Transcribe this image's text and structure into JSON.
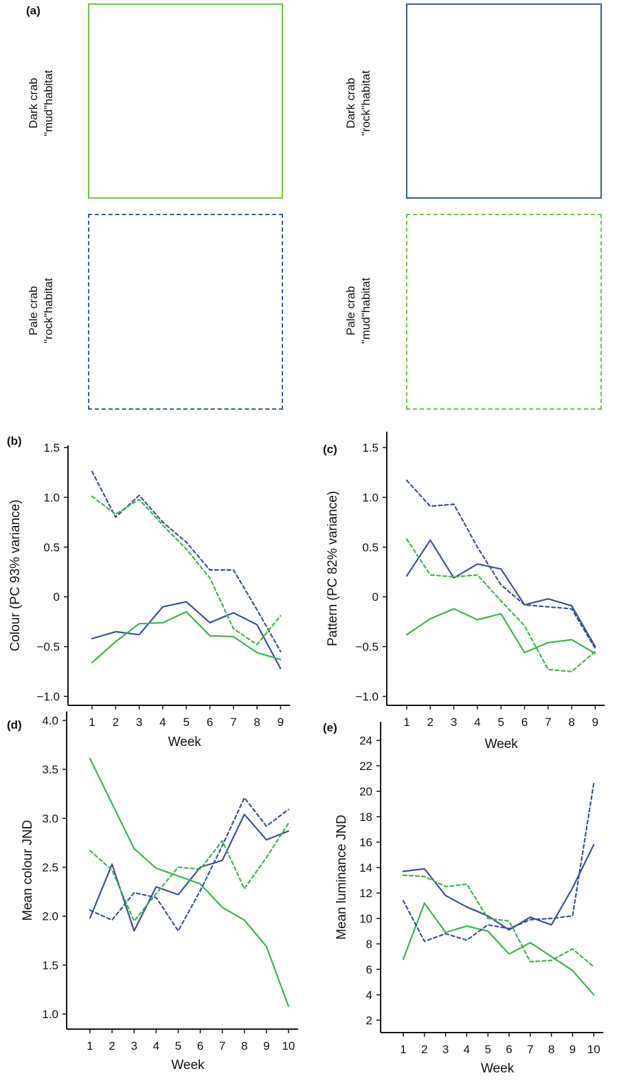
{
  "panel_a": {
    "label": "(a)",
    "tiles": [
      {
        "line1": "Dark crab",
        "line2": "\"mud\"habitat",
        "habitat": "mud",
        "crab": "dark",
        "border": "solid",
        "frame_color": "#6cc644"
      },
      {
        "line1": "Dark crab",
        "line2": "\"rock\"habitat",
        "habitat": "rock",
        "crab": "dark",
        "border": "solid",
        "frame_color": "#3a5a9c"
      },
      {
        "line1": "Pale crab",
        "line2": "\"rock\"habitat",
        "habitat": "rock",
        "crab": "pale",
        "border": "dashed",
        "frame_color": "#3a5a9c"
      },
      {
        "line1": "Pale crab",
        "line2": "\"mud\"habitat",
        "habitat": "mud",
        "crab": "pale",
        "border": "dashed",
        "frame_color": "#6cc644"
      }
    ],
    "palettes": {
      "mud": [
        "#2e9b3a",
        "#3fb54a",
        "#2a8a33",
        "#8a5a3a",
        "#a0745a",
        "#c9b8a0",
        "#6b4a30",
        "#e8e0d0",
        "#b06a50",
        "#48c050"
      ],
      "rock": [
        "#d86aa8",
        "#e890c0",
        "#f4f4f4",
        "#e0e0e0",
        "#2a2a2a",
        "#3a3a40",
        "#2b50a8",
        "#3a66c8",
        "#c858a0",
        "#bcbcbc"
      ]
    },
    "crab_colors": {
      "dark": "#2f342a",
      "pale": "#a8ad90"
    }
  },
  "series_colors": {
    "blue": "#3a4f9e",
    "green": "#3cb54a"
  },
  "chart_data": [
    {
      "id": "b",
      "label": "(b)",
      "type": "line",
      "xlabel": "Week",
      "ylabel": "Colour (PC 93% variance)",
      "x": [
        1,
        2,
        3,
        4,
        5,
        6,
        7,
        8,
        9
      ],
      "ylim": [
        -1.0,
        1.5
      ],
      "yticks": [
        1.5,
        1.0,
        0.5,
        0,
        -0.5,
        -1.0
      ],
      "ytick_labels": [
        "1.5",
        "1.0",
        "0.5",
        "0",
        "−0.5",
        "−1.0"
      ],
      "xticks": [
        "1",
        "2",
        "3",
        "4",
        "5",
        "6",
        "7",
        "8",
        "9"
      ],
      "series": [
        {
          "color": "blue",
          "dash": false,
          "values": [
            -0.42,
            -0.35,
            -0.38,
            -0.1,
            -0.05,
            -0.26,
            -0.16,
            -0.28,
            -0.72
          ]
        },
        {
          "color": "green",
          "dash": false,
          "values": [
            -0.66,
            -0.45,
            -0.27,
            -0.26,
            -0.15,
            -0.39,
            -0.4,
            -0.56,
            -0.63
          ]
        },
        {
          "color": "blue",
          "dash": true,
          "values": [
            1.26,
            0.8,
            1.02,
            0.75,
            0.55,
            0.27,
            0.27,
            -0.13,
            -0.55
          ]
        },
        {
          "color": "green",
          "dash": true,
          "values": [
            1.01,
            0.83,
            0.98,
            0.72,
            0.48,
            0.19,
            -0.32,
            -0.48,
            -0.19
          ]
        }
      ]
    },
    {
      "id": "c",
      "label": "(c)",
      "type": "line",
      "xlabel": "Week",
      "ylabel": "Pattern (PC 82% variance)",
      "x": [
        1,
        2,
        3,
        4,
        5,
        6,
        7,
        8,
        9
      ],
      "ylim": [
        -1.0,
        1.5
      ],
      "yticks": [
        1.5,
        1.0,
        0.5,
        0,
        -0.5,
        -1.0
      ],
      "ytick_labels": [
        "1.5",
        "1.0",
        "0.5",
        "0",
        "−0.5",
        "−1.0"
      ],
      "xticks": [
        "1",
        "2",
        "3",
        "4",
        "5",
        "6",
        "7",
        "8",
        "9"
      ],
      "series": [
        {
          "color": "blue",
          "dash": false,
          "values": [
            0.21,
            0.57,
            0.19,
            0.33,
            0.28,
            -0.08,
            -0.02,
            -0.09,
            -0.5
          ]
        },
        {
          "color": "green",
          "dash": false,
          "values": [
            -0.38,
            -0.22,
            -0.12,
            -0.23,
            -0.17,
            -0.56,
            -0.46,
            -0.43,
            -0.57
          ]
        },
        {
          "color": "blue",
          "dash": true,
          "values": [
            1.17,
            0.91,
            0.93,
            0.5,
            0.12,
            -0.08,
            -0.1,
            -0.12,
            -0.52
          ]
        },
        {
          "color": "green",
          "dash": true,
          "values": [
            0.58,
            0.22,
            0.2,
            0.22,
            -0.04,
            -0.29,
            -0.73,
            -0.75,
            -0.55
          ]
        }
      ]
    },
    {
      "id": "d",
      "label": "(d)",
      "type": "line",
      "xlabel": "Week",
      "ylabel": "Mean colour JND",
      "x": [
        1,
        2,
        3,
        4,
        5,
        6,
        7,
        8,
        9,
        10
      ],
      "ylim": [
        1.0,
        4.0
      ],
      "yticks": [
        4.0,
        3.5,
        3.0,
        2.5,
        2.0,
        1.5,
        1.0
      ],
      "ytick_labels": [
        "4.0",
        "3.5",
        "3.0",
        "2.5",
        "2.0",
        "1.5",
        "1.0"
      ],
      "xticks": [
        "1",
        "2",
        "3",
        "4",
        "5",
        "6",
        "7",
        "8",
        "9",
        "10"
      ],
      "series": [
        {
          "color": "blue",
          "dash": false,
          "values": [
            1.98,
            2.53,
            1.85,
            2.3,
            2.22,
            2.5,
            2.57,
            3.04,
            2.78,
            2.87
          ]
        },
        {
          "color": "green",
          "dash": false,
          "values": [
            3.61,
            3.15,
            2.69,
            2.49,
            2.41,
            2.33,
            2.09,
            1.96,
            1.69,
            1.08
          ]
        },
        {
          "color": "blue",
          "dash": true,
          "values": [
            2.06,
            1.96,
            2.24,
            2.19,
            1.85,
            2.26,
            2.72,
            3.21,
            2.92,
            3.09
          ]
        },
        {
          "color": "green",
          "dash": true,
          "values": [
            2.67,
            2.47,
            1.95,
            2.23,
            2.5,
            2.48,
            2.77,
            2.28,
            2.6,
            2.95
          ]
        }
      ]
    },
    {
      "id": "e",
      "label": "(e)",
      "type": "line",
      "xlabel": "Week",
      "ylabel": "Mean luminance JND",
      "x": [
        1,
        2,
        3,
        4,
        5,
        6,
        7,
        8,
        9,
        10
      ],
      "ylim": [
        2,
        24
      ],
      "yticks": [
        24,
        22,
        20,
        18,
        16,
        14,
        12,
        10,
        8,
        6,
        4,
        2
      ],
      "ytick_labels": [
        "24",
        "22",
        "20",
        "18",
        "16",
        "14",
        "12",
        "10",
        "8",
        "6",
        "4",
        "2"
      ],
      "xticks": [
        "1",
        "2",
        "3",
        "4",
        "5",
        "6",
        "7",
        "8",
        "9",
        "10"
      ],
      "series": [
        {
          "color": "blue",
          "dash": false,
          "values": [
            13.7,
            13.9,
            11.8,
            10.9,
            10.2,
            9.1,
            10.1,
            9.5,
            12.4,
            15.8
          ]
        },
        {
          "color": "green",
          "dash": false,
          "values": [
            6.8,
            11.2,
            8.9,
            9.4,
            9.0,
            7.2,
            8.1,
            7.0,
            5.9,
            4.0
          ]
        },
        {
          "color": "blue",
          "dash": true,
          "values": [
            11.4,
            8.2,
            8.8,
            8.3,
            9.5,
            9.2,
            9.9,
            10.0,
            10.2,
            20.6
          ]
        },
        {
          "color": "green",
          "dash": true,
          "values": [
            13.4,
            13.3,
            12.5,
            12.7,
            10.0,
            9.8,
            6.6,
            6.7,
            7.6,
            6.2
          ]
        }
      ]
    }
  ]
}
